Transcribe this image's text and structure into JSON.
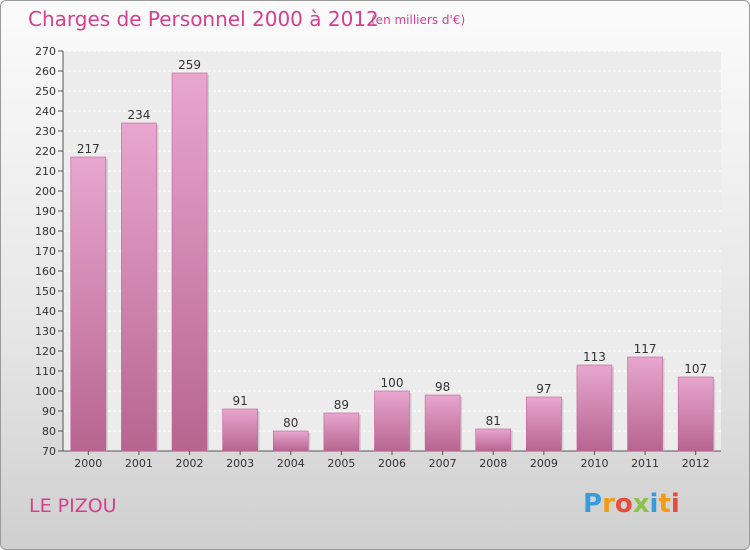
{
  "header": {
    "title": "Charges de Personnel 2000 à 2012",
    "subtitle": "(en milliers d'€)"
  },
  "footer": {
    "place": "LE PIZOU",
    "logo": {
      "text": "Proxiti",
      "colors": [
        "#3a9bd9",
        "#f39c12",
        "#e74c3c",
        "#8bc34a",
        "#3a9bd9",
        "#f39c12",
        "#e74c3c"
      ]
    }
  },
  "colors": {
    "accent": "#d63f8f",
    "bar_top": "#e8a6cf",
    "bar_bottom": "#b7658f",
    "bar_edge": "#c45f98"
  },
  "chart_data": {
    "type": "bar",
    "categories": [
      "2000",
      "2001",
      "2002",
      "2003",
      "2004",
      "2005",
      "2006",
      "2007",
      "2008",
      "2009",
      "2010",
      "2011",
      "2012"
    ],
    "values": [
      217,
      234,
      259,
      91,
      80,
      89,
      100,
      98,
      81,
      97,
      113,
      117,
      107
    ],
    "ylim": [
      70,
      270
    ],
    "ytick_step": 10,
    "grid": true
  }
}
